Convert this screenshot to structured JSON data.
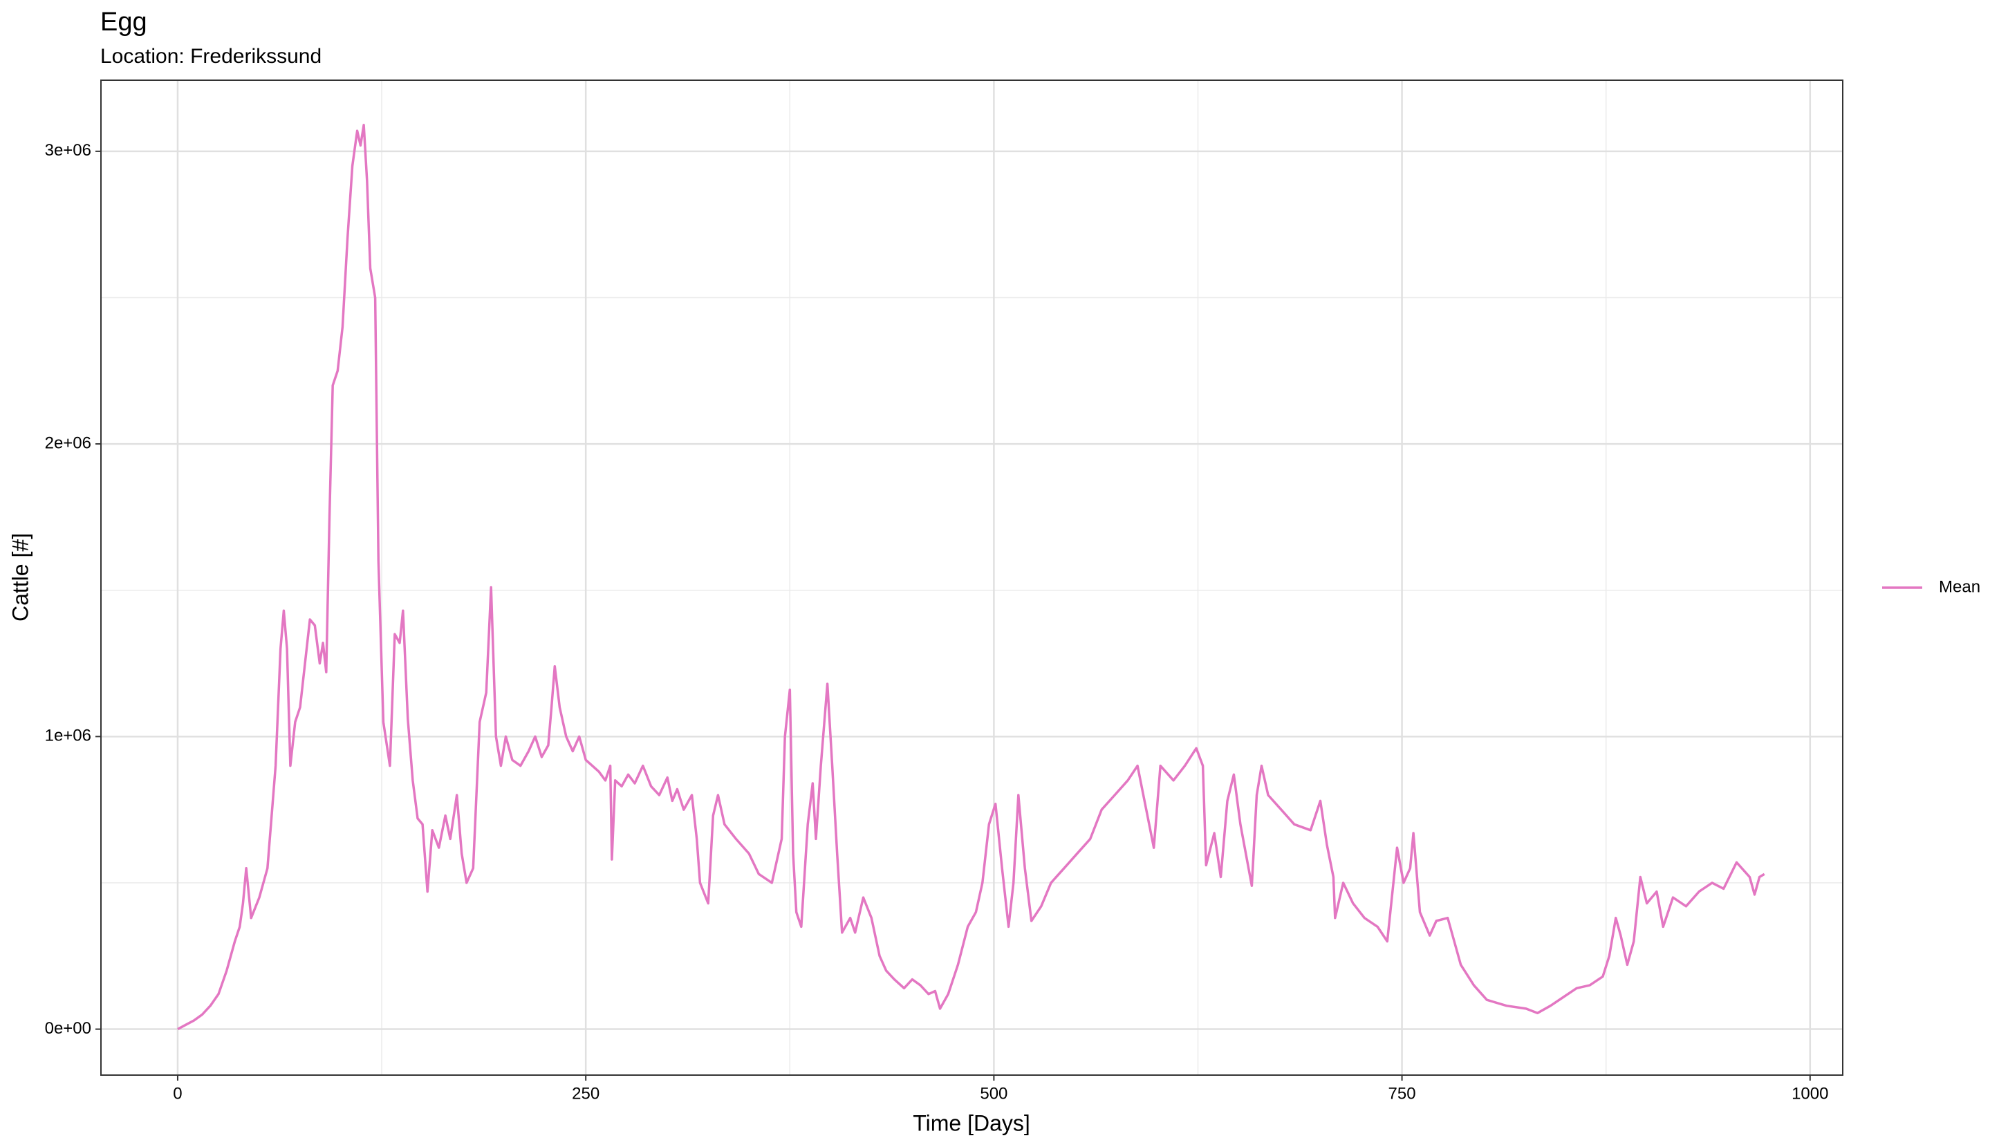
{
  "chart_data": {
    "type": "line",
    "title": "Egg",
    "subtitle": "Location: Frederikssund",
    "x_label": "Time [Days]",
    "y_label": "Cattle [#]",
    "xlim": [
      -47,
      1020
    ],
    "ylim": [
      -157000,
      3243000
    ],
    "xticks": [
      0,
      250,
      500,
      750,
      1000
    ],
    "yticks": [
      {
        "value": 0,
        "label": "0e+00"
      },
      {
        "value": 1000000,
        "label": "1e+06"
      },
      {
        "value": 2000000,
        "label": "2e+06"
      },
      {
        "value": 3000000,
        "label": "3e+06"
      }
    ],
    "grid": true,
    "legend": "right",
    "x": [
      0,
      5,
      10,
      15,
      20,
      25,
      30,
      35,
      38,
      40,
      42,
      45,
      50,
      55,
      60,
      63,
      65,
      67,
      69,
      72,
      75,
      78,
      81,
      84,
      87,
      89,
      91,
      93,
      95,
      98,
      101,
      104,
      107,
      110,
      112,
      114,
      116,
      118,
      121,
      123,
      126,
      130,
      133,
      136,
      138,
      141,
      144,
      147,
      150,
      153,
      156,
      160,
      164,
      167,
      171,
      174,
      177,
      181,
      185,
      189,
      192,
      195,
      198,
      201,
      205,
      210,
      215,
      219,
      223,
      227,
      229,
      231,
      234,
      238,
      242,
      246,
      250,
      254,
      258,
      262,
      265,
      266,
      268,
      272,
      276,
      280,
      285,
      290,
      295,
      300,
      303,
      306,
      310,
      315,
      318,
      320,
      325,
      328,
      331,
      335,
      342,
      350,
      356,
      364,
      370,
      372,
      375,
      377,
      379,
      382,
      386,
      389,
      391,
      394,
      398,
      401,
      404,
      407,
      412,
      415,
      420,
      425,
      430,
      434,
      439,
      445,
      450,
      455,
      460,
      464,
      467,
      472,
      478,
      484,
      489,
      493,
      497,
      501,
      505,
      509,
      512,
      515,
      519,
      523,
      529,
      535,
      543,
      551,
      559,
      566,
      574,
      582,
      588,
      598,
      602,
      610,
      617,
      624,
      628,
      630,
      635,
      639,
      643,
      647,
      651,
      658,
      661,
      664,
      668,
      676,
      684,
      694,
      700,
      704,
      708,
      709,
      714,
      720,
      727,
      735,
      741,
      747,
      751,
      755,
      757,
      761,
      767,
      771,
      778,
      786,
      794,
      802,
      814,
      826,
      833,
      841,
      849,
      857,
      865,
      873,
      877,
      881,
      884,
      888,
      892,
      896,
      900,
      906,
      910,
      916,
      924,
      932,
      940,
      947,
      955,
      963,
      966,
      969,
      972
    ],
    "series": [
      {
        "name": "Mean",
        "color": "#e377c2",
        "values": [
          0,
          15000,
          30000,
          50000,
          80000,
          120000,
          200000,
          300000,
          350000,
          430000,
          550000,
          380000,
          450000,
          550000,
          900000,
          1300000,
          1430000,
          1300000,
          900000,
          1050000,
          1100000,
          1250000,
          1400000,
          1380000,
          1250000,
          1320000,
          1220000,
          1750000,
          2200000,
          2250000,
          2400000,
          2700000,
          2950000,
          3070000,
          3020000,
          3090000,
          2900000,
          2600000,
          2500000,
          1600000,
          1050000,
          900000,
          1350000,
          1320000,
          1430000,
          1060000,
          850000,
          720000,
          700000,
          470000,
          680000,
          620000,
          730000,
          650000,
          800000,
          600000,
          500000,
          550000,
          1050000,
          1150000,
          1510000,
          1000000,
          900000,
          1000000,
          920000,
          900000,
          950000,
          1000000,
          930000,
          970000,
          1100000,
          1240000,
          1100000,
          1000000,
          950000,
          1000000,
          920000,
          900000,
          880000,
          850000,
          900000,
          580000,
          850000,
          830000,
          870000,
          840000,
          900000,
          830000,
          800000,
          860000,
          780000,
          820000,
          750000,
          800000,
          650000,
          500000,
          430000,
          730000,
          800000,
          700000,
          650000,
          600000,
          530000,
          500000,
          650000,
          1000000,
          1160000,
          600000,
          400000,
          350000,
          700000,
          840000,
          650000,
          900000,
          1180000,
          900000,
          600000,
          330000,
          380000,
          330000,
          450000,
          380000,
          250000,
          200000,
          170000,
          140000,
          170000,
          150000,
          120000,
          130000,
          70000,
          120000,
          220000,
          350000,
          400000,
          500000,
          700000,
          770000,
          550000,
          350000,
          500000,
          800000,
          550000,
          370000,
          420000,
          500000,
          550000,
          600000,
          650000,
          750000,
          800000,
          850000,
          900000,
          620000,
          900000,
          850000,
          900000,
          960000,
          900000,
          560000,
          670000,
          520000,
          780000,
          870000,
          700000,
          490000,
          800000,
          900000,
          800000,
          750000,
          700000,
          680000,
          780000,
          630000,
          520000,
          380000,
          500000,
          430000,
          380000,
          350000,
          300000,
          620000,
          500000,
          550000,
          670000,
          400000,
          320000,
          370000,
          380000,
          220000,
          150000,
          100000,
          80000,
          70000,
          55000,
          80000,
          110000,
          140000,
          150000,
          180000,
          250000,
          380000,
          320000,
          220000,
          300000,
          520000,
          430000,
          470000,
          350000,
          450000,
          420000,
          470000,
          500000,
          480000,
          570000,
          520000,
          460000,
          520000,
          530000
        ]
      }
    ]
  }
}
